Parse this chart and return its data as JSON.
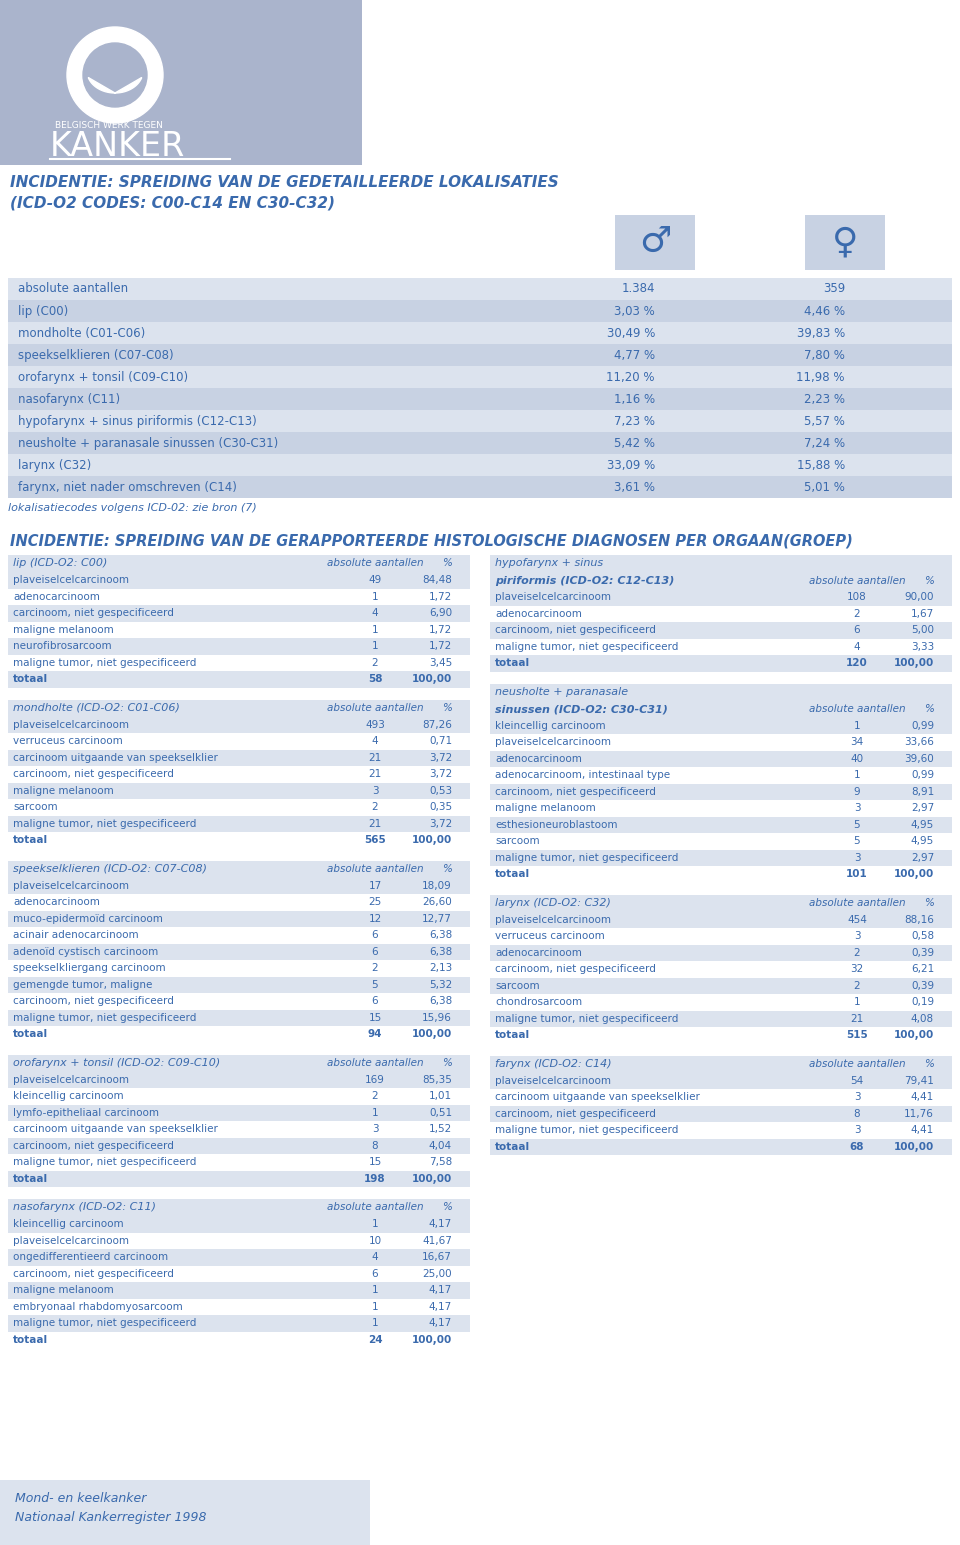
{
  "bg_color": "#ffffff",
  "header_bg": "#aab4cc",
  "table1_row_colors": [
    "#dce3ee",
    "#c8d2e3"
  ],
  "table2_header_color": "#dce3ee",
  "table2_row_colors": [
    "#ffffff",
    "#dce3ee"
  ],
  "blue_text": "#3a6aad",
  "title1": "INCIDENTIE: SPREIDING VAN DE GEDETAILLEERDE LOKALISATIES",
  "title1b": "(ICD-O2 CODES: C00-C14 EN C30-C32)",
  "title2": "INCIDENTIE: SPREIDING VAN DE GERAPPORTEERDE HISTOLOGISCHE DIAGNOSEN PER ORGAAN(GROEP)",
  "footer_line1": "Mond- en keelkanker",
  "footer_line2": "Nationaal Kankerregister 1998",
  "footer_bg": "#dce3ee",
  "table1_rows": [
    [
      "absolute aantallen",
      "1.384",
      "359"
    ],
    [
      "lip (C00)",
      "3,03 %",
      "4,46 %"
    ],
    [
      "mondholte (C01-C06)",
      "30,49 %",
      "39,83 %"
    ],
    [
      "speekselklieren (C07-C08)",
      "4,77 %",
      "7,80 %"
    ],
    [
      "orofarynx + tonsil (C09-C10)",
      "11,20 %",
      "11,98 %"
    ],
    [
      "nasofarynx (C11)",
      "1,16 %",
      "2,23 %"
    ],
    [
      "hypofarynx + sinus piriformis (C12-C13)",
      "7,23 %",
      "5,57 %"
    ],
    [
      "neusholte + paranasale sinussen (C30-C31)",
      "5,42 %",
      "7,24 %"
    ],
    [
      "larynx (C32)",
      "33,09 %",
      "15,88 %"
    ],
    [
      "farynx, niet nader omschreven (C14)",
      "3,61 %",
      "5,01 %"
    ]
  ],
  "table1_note": "lokalisatiecodes volgens ICD-02: zie bron (7)",
  "left_tables": [
    {
      "title": "lip (ICD-O2: C00)",
      "title2": "",
      "rows": [
        [
          "plaveiselcelcarcinoom",
          "49",
          "84,48"
        ],
        [
          "adenocarcinoom",
          "1",
          "1,72"
        ],
        [
          "carcinoom, niet gespecificeerd",
          "4",
          "6,90"
        ],
        [
          "maligne melanoom",
          "1",
          "1,72"
        ],
        [
          "neurofibrosarcoom",
          "1",
          "1,72"
        ],
        [
          "maligne tumor, niet gespecificeerd",
          "2",
          "3,45"
        ],
        [
          "totaal",
          "58",
          "100,00"
        ]
      ]
    },
    {
      "title": "mondholte (ICD-O2: C01-C06)",
      "title2": "",
      "rows": [
        [
          "plaveiselcelcarcinoom",
          "493",
          "87,26"
        ],
        [
          "verruceus carcinoom",
          "4",
          "0,71"
        ],
        [
          "carcinoom uitgaande van speekselklier",
          "21",
          "3,72"
        ],
        [
          "carcinoom, niet gespecificeerd",
          "21",
          "3,72"
        ],
        [
          "maligne melanoom",
          "3",
          "0,53"
        ],
        [
          "sarcoom",
          "2",
          "0,35"
        ],
        [
          "maligne tumor, niet gespecificeerd",
          "21",
          "3,72"
        ],
        [
          "totaal",
          "565",
          "100,00"
        ]
      ]
    },
    {
      "title": "speekselklieren (ICD-O2: C07-C08)",
      "title2": "",
      "rows": [
        [
          "plaveiselcelcarcinoom",
          "17",
          "18,09"
        ],
        [
          "adenocarcinoom",
          "25",
          "26,60"
        ],
        [
          "muco-epidermoïd carcinoom",
          "12",
          "12,77"
        ],
        [
          "acinair adenocarcinoom",
          "6",
          "6,38"
        ],
        [
          "adenoïd cystisch carcinoom",
          "6",
          "6,38"
        ],
        [
          "speekselkliergang carcinoom",
          "2",
          "2,13"
        ],
        [
          "gemengde tumor, maligne",
          "5",
          "5,32"
        ],
        [
          "carcinoom, niet gespecificeerd",
          "6",
          "6,38"
        ],
        [
          "maligne tumor, niet gespecificeerd",
          "15",
          "15,96"
        ],
        [
          "totaal",
          "94",
          "100,00"
        ]
      ]
    },
    {
      "title": "orofarynx + tonsil (ICD-O2: C09-C10)",
      "title2": "",
      "rows": [
        [
          "plaveiselcelcarcinoom",
          "169",
          "85,35"
        ],
        [
          "kleincellig carcinoom",
          "2",
          "1,01"
        ],
        [
          "lymfo-epitheliaal carcinoom",
          "1",
          "0,51"
        ],
        [
          "carcinoom uitgaande van speekselklier",
          "3",
          "1,52"
        ],
        [
          "carcinoom, niet gespecificeerd",
          "8",
          "4,04"
        ],
        [
          "maligne tumor, niet gespecificeerd",
          "15",
          "7,58"
        ],
        [
          "totaal",
          "198",
          "100,00"
        ]
      ]
    },
    {
      "title": "nasofarynx (ICD-O2: C11)",
      "title2": "",
      "rows": [
        [
          "kleincellig carcinoom",
          "1",
          "4,17"
        ],
        [
          "plaveiselcelcarcinoom",
          "10",
          "41,67"
        ],
        [
          "ongedifferentieerd carcinoom",
          "4",
          "16,67"
        ],
        [
          "carcinoom, niet gespecificeerd",
          "6",
          "25,00"
        ],
        [
          "maligne melanoom",
          "1",
          "4,17"
        ],
        [
          "embryonaal rhabdomyosarcoom",
          "1",
          "4,17"
        ],
        [
          "maligne tumor, niet gespecificeerd",
          "1",
          "4,17"
        ],
        [
          "totaal",
          "24",
          "100,00"
        ]
      ]
    }
  ],
  "right_tables": [
    {
      "title": "hypofarynx + sinus",
      "title2": "piriformis (ICD-O2: C12-C13)",
      "rows": [
        [
          "plaveiselcelcarcinoom",
          "108",
          "90,00"
        ],
        [
          "adenocarcinoom",
          "2",
          "1,67"
        ],
        [
          "carcinoom, niet gespecificeerd",
          "6",
          "5,00"
        ],
        [
          "maligne tumor, niet gespecificeerd",
          "4",
          "3,33"
        ],
        [
          "totaal",
          "120",
          "100,00"
        ]
      ]
    },
    {
      "title": "neusholte + paranasale",
      "title2": "sinussen (ICD-O2: C30-C31)",
      "rows": [
        [
          "kleincellig carcinoom",
          "1",
          "0,99"
        ],
        [
          "plaveiselcelcarcinoom",
          "34",
          "33,66"
        ],
        [
          "adenocarcinoom",
          "40",
          "39,60"
        ],
        [
          "adenocarcinoom, intestinaal type",
          "1",
          "0,99"
        ],
        [
          "carcinoom, niet gespecificeerd",
          "9",
          "8,91"
        ],
        [
          "maligne melanoom",
          "3",
          "2,97"
        ],
        [
          "esthesioneuroblastoom",
          "5",
          "4,95"
        ],
        [
          "sarcoom",
          "5",
          "4,95"
        ],
        [
          "maligne tumor, niet gespecificeerd",
          "3",
          "2,97"
        ],
        [
          "totaal",
          "101",
          "100,00"
        ]
      ]
    },
    {
      "title": "larynx (ICD-O2: C32)",
      "title2": "",
      "rows": [
        [
          "plaveiselcelcarcinoom",
          "454",
          "88,16"
        ],
        [
          "verruceus carcinoom",
          "3",
          "0,58"
        ],
        [
          "adenocarcinoom",
          "2",
          "0,39"
        ],
        [
          "carcinoom, niet gespecificeerd",
          "32",
          "6,21"
        ],
        [
          "sarcoom",
          "2",
          "0,39"
        ],
        [
          "chondrosarcoom",
          "1",
          "0,19"
        ],
        [
          "maligne tumor, niet gespecificeerd",
          "21",
          "4,08"
        ],
        [
          "totaal",
          "515",
          "100,00"
        ]
      ]
    },
    {
      "title": "farynx (ICD-O2: C14)",
      "title2": "",
      "rows": [
        [
          "plaveiselcelcarcinoom",
          "54",
          "79,41"
        ],
        [
          "carcinoom uitgaande van speekselklier",
          "3",
          "4,41"
        ],
        [
          "carcinoom, niet gespecificeerd",
          "8",
          "11,76"
        ],
        [
          "maligne tumor, niet gespecificeerd",
          "3",
          "4,41"
        ],
        [
          "totaal",
          "68",
          "100,00"
        ]
      ]
    }
  ]
}
